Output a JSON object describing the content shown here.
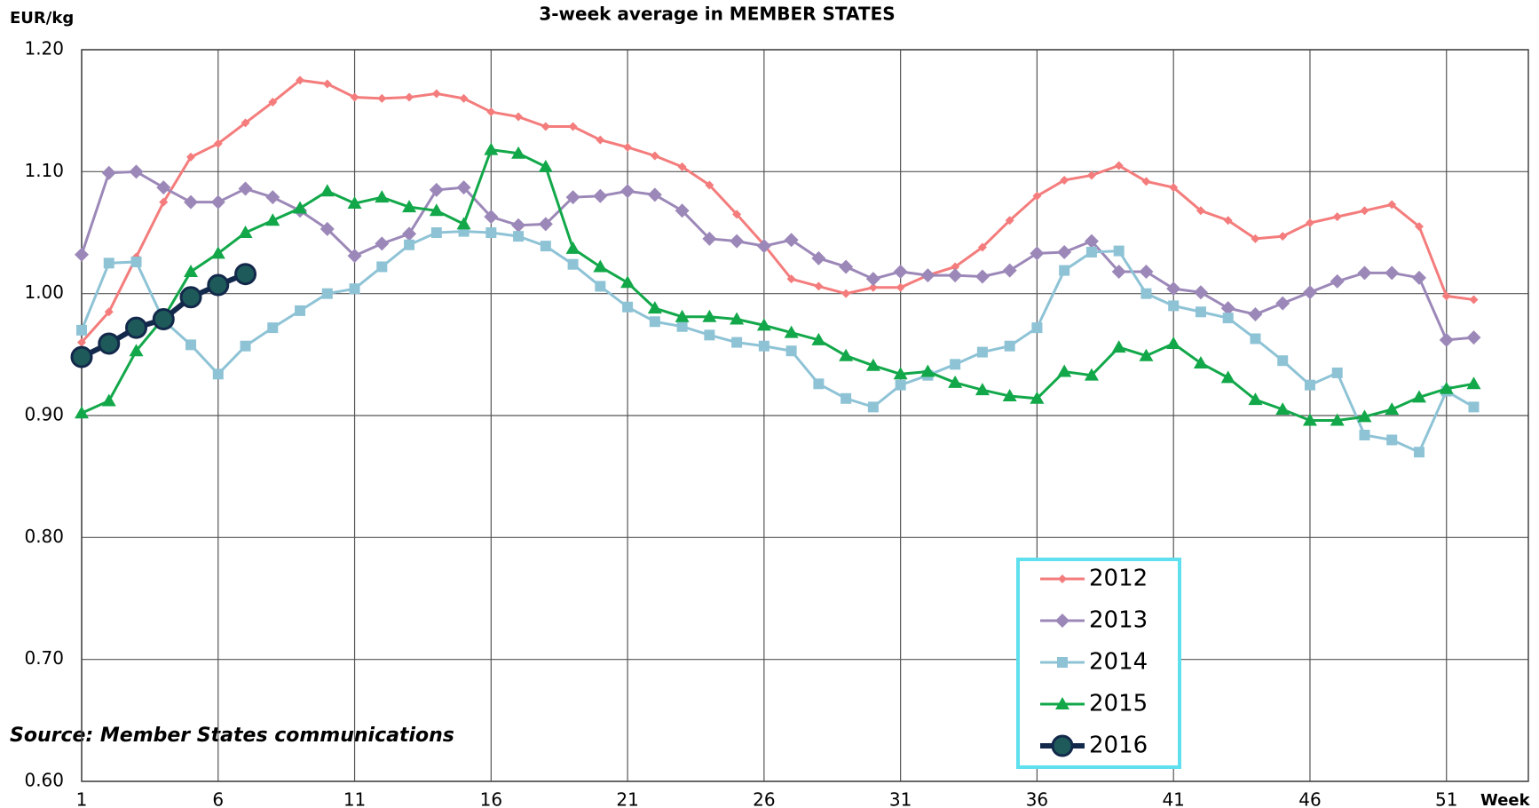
{
  "chart_data": {
    "type": "line",
    "subtitle": "3-week average in MEMBER STATES",
    "y_label": "EUR/kg",
    "x_label": "Week",
    "annotation": "Source: Member States communications",
    "x": [
      1,
      2,
      3,
      4,
      5,
      6,
      7,
      8,
      9,
      10,
      11,
      12,
      13,
      14,
      15,
      16,
      17,
      18,
      19,
      20,
      21,
      22,
      23,
      24,
      25,
      26,
      27,
      28,
      29,
      30,
      31,
      32,
      33,
      34,
      35,
      36,
      37,
      38,
      39,
      40,
      41,
      42,
      43,
      44,
      45,
      46,
      47,
      48,
      49,
      50,
      51,
      52
    ],
    "xlim": [
      1,
      54
    ],
    "xticks": [
      1,
      6,
      11,
      16,
      21,
      26,
      31,
      36,
      41,
      46,
      51
    ],
    "ylim": [
      0.6,
      1.2
    ],
    "yticks": [
      {
        "value": 0.6,
        "label": "0.60"
      },
      {
        "value": 0.7,
        "label": "0.70"
      },
      {
        "value": 0.8,
        "label": "0.80"
      },
      {
        "value": 0.9,
        "label": "0.90"
      },
      {
        "value": 1.0,
        "label": "1.00"
      },
      {
        "value": 1.1,
        "label": "1.10"
      },
      {
        "value": 1.2,
        "label": "1.20"
      }
    ],
    "grid": true,
    "legend": "lower right",
    "series": [
      {
        "name": "2012",
        "color": "#f47c7c",
        "marker": "diamond",
        "values": [
          0.96,
          0.985,
          1.03,
          1.075,
          1.112,
          1.123,
          1.14,
          1.157,
          1.175,
          1.172,
          1.161,
          1.16,
          1.161,
          1.164,
          1.16,
          1.149,
          1.145,
          1.137,
          1.137,
          1.126,
          1.12,
          1.113,
          1.104,
          1.089,
          1.065,
          1.04,
          1.012,
          1.006,
          1.0,
          1.005,
          1.005,
          1.015,
          1.022,
          1.038,
          1.06,
          1.08,
          1.093,
          1.097,
          1.105,
          1.092,
          1.087,
          1.068,
          1.06,
          1.045,
          1.047,
          1.058,
          1.063,
          1.068,
          1.073,
          1.055,
          0.998,
          0.995
        ]
      },
      {
        "name": "2013",
        "color": "#9c88b8",
        "marker": "bigdiamond",
        "values": [
          1.032,
          1.099,
          1.1,
          1.087,
          1.075,
          1.075,
          1.086,
          1.079,
          1.068,
          1.053,
          1.031,
          1.041,
          1.049,
          1.085,
          1.087,
          1.063,
          1.056,
          1.057,
          1.079,
          1.08,
          1.084,
          1.081,
          1.068,
          1.045,
          1.043,
          1.039,
          1.044,
          1.029,
          1.022,
          1.012,
          1.018,
          1.015,
          1.015,
          1.014,
          1.019,
          1.033,
          1.034,
          1.043,
          1.018,
          1.018,
          1.004,
          1.001,
          0.988,
          0.983,
          0.992,
          1.001,
          1.01,
          1.017,
          1.017,
          1.013,
          0.962,
          0.964
        ]
      },
      {
        "name": "2014",
        "color": "#8ec3d6",
        "marker": "square",
        "values": [
          0.97,
          1.025,
          1.026,
          0.978,
          0.958,
          0.934,
          0.957,
          0.972,
          0.986,
          1.0,
          1.004,
          1.022,
          1.04,
          1.05,
          1.051,
          1.05,
          1.047,
          1.039,
          1.024,
          1.006,
          0.989,
          0.977,
          0.973,
          0.966,
          0.96,
          0.957,
          0.953,
          0.926,
          0.914,
          0.907,
          0.925,
          0.933,
          0.942,
          0.952,
          0.957,
          0.972,
          1.019,
          1.034,
          1.035,
          1.0,
          0.99,
          0.985,
          0.98,
          0.963,
          0.945,
          0.925,
          0.935,
          0.884,
          0.88,
          0.87,
          0.92,
          0.907
        ]
      },
      {
        "name": "2015",
        "color": "#12a84a",
        "marker": "triangle",
        "values": [
          0.902,
          0.912,
          0.953,
          0.98,
          1.018,
          1.033,
          1.05,
          1.06,
          1.07,
          1.084,
          1.074,
          1.079,
          1.071,
          1.068,
          1.057,
          1.118,
          1.115,
          1.104,
          1.037,
          1.022,
          1.009,
          0.988,
          0.981,
          0.981,
          0.979,
          0.974,
          0.968,
          0.962,
          0.949,
          0.941,
          0.934,
          0.936,
          0.927,
          0.921,
          0.916,
          0.914,
          0.936,
          0.933,
          0.956,
          0.949,
          0.959,
          0.943,
          0.931,
          0.913,
          0.905,
          0.896,
          0.896,
          0.899,
          0.905,
          0.915,
          0.922,
          0.926
        ]
      },
      {
        "name": "2016",
        "color": "#13294b",
        "marker": "circle",
        "values": [
          0.948,
          0.959,
          0.972,
          0.979,
          0.997,
          1.007,
          1.016,
          null,
          null,
          null,
          null,
          null,
          null,
          null,
          null,
          null,
          null,
          null,
          null,
          null,
          null,
          null,
          null,
          null,
          null,
          null,
          null,
          null,
          null,
          null,
          null,
          null,
          null,
          null,
          null,
          null,
          null,
          null,
          null,
          null,
          null,
          null,
          null,
          null,
          null,
          null,
          null,
          null,
          null,
          null,
          null,
          null
        ]
      }
    ]
  }
}
